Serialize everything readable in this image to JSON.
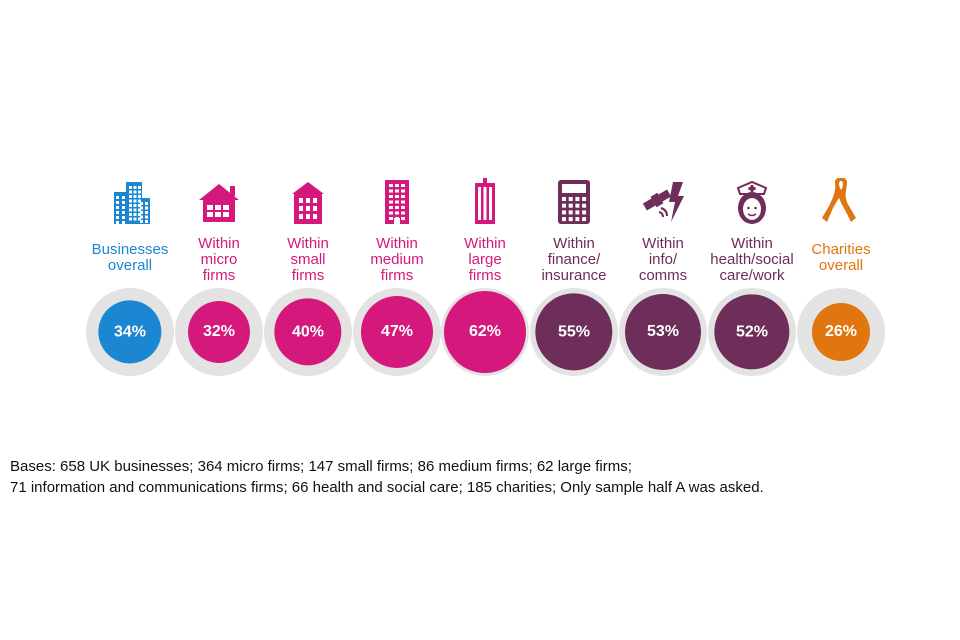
{
  "chart_data": {
    "type": "infographic",
    "categories": [
      {
        "label": [
          "Businesses",
          "overall"
        ],
        "value": 34,
        "display": "34%",
        "color": "#1b87d3",
        "icon": "office-buildings-icon"
      },
      {
        "label": [
          "Within",
          "micro",
          "firms"
        ],
        "value": 32,
        "display": "32%",
        "color": "#d4187c",
        "icon": "house-icon"
      },
      {
        "label": [
          "Within",
          "small",
          "firms"
        ],
        "value": 40,
        "display": "40%",
        "color": "#d4187c",
        "icon": "small-building-icon"
      },
      {
        "label": [
          "Within",
          "medium",
          "firms"
        ],
        "value": 47,
        "display": "47%",
        "color": "#d4187c",
        "icon": "medium-building-icon"
      },
      {
        "label": [
          "Within",
          "large",
          "firms"
        ],
        "value": 62,
        "display": "62%",
        "color": "#d4187c",
        "icon": "tower-building-icon"
      },
      {
        "label": [
          "Within",
          "finance/",
          "insurance"
        ],
        "value": 55,
        "display": "55%",
        "color": "#6d2e5a",
        "icon": "calculator-icon"
      },
      {
        "label": [
          "Within",
          "info/",
          "comms"
        ],
        "value": 53,
        "display": "53%",
        "color": "#6d2e5a",
        "icon": "satellite-signal-icon"
      },
      {
        "label": [
          "Within",
          "health/social",
          "care/work"
        ],
        "value": 52,
        "display": "52%",
        "color": "#6d2e5a",
        "icon": "nurse-icon"
      },
      {
        "label": [
          "Charities",
          "overall"
        ],
        "value": 26,
        "display": "26%",
        "color": "#e0760f",
        "icon": "awareness-ribbon-icon"
      }
    ]
  },
  "bases": [
    "Bases: 658 UK businesses; 364 micro firms; 147 small firms; 86 medium firms; 62 large firms;",
    "71 information and communications firms; 66 health and social care; 185 charities; Only sample half A was asked."
  ]
}
